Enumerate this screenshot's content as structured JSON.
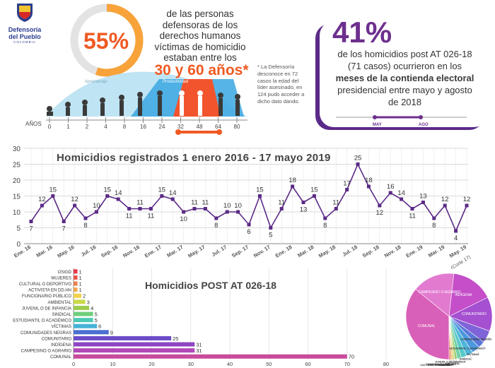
{
  "logo": {
    "title_line1": "Defensoría",
    "title_line2": "del Pueblo",
    "subtitle": "COLOMBIA"
  },
  "age_panel": {
    "percent": "55%",
    "percent_value": 55,
    "statement": "de las personas defensoras de los derechos humanos víctimas de homicidio estaban entre los",
    "range_text": "30 y 60 años*",
    "stage_labels": [
      "Aprendizaje",
      "Productividad"
    ],
    "axis_label": "AÑOS",
    "ticks": [
      "0",
      "1",
      "2",
      "4",
      "8",
      "16",
      "24",
      "32",
      "48",
      "64",
      "80"
    ],
    "slider_range": [
      "32",
      "64"
    ],
    "note": "* La Defensoría desconoce en 72 casos la edad del líder asesinado, en 124 pudo acceder a dicho dato dando."
  },
  "electoral_card": {
    "percent": "41%",
    "percent_value": 41,
    "text_line1": "de los homicidios post AT 026-18 (71 casos) ocurrieron en los",
    "bold1": "meses de la contienda electoral",
    "text_line2": "presidencial entre mayo y agosto de 2018",
    "slider_labels": [
      "MAY",
      "AGO"
    ]
  },
  "colors": {
    "accent_orange": "#f05a22",
    "purple": "#6d2f8e",
    "line_purple": "#5b2a86",
    "grid": "#cccccc",
    "bar_red": "#e63946"
  },
  "chart_data": [
    {
      "type": "line",
      "title": "Homicidios registrados 1 enero 2016 - 17 mayo 2019",
      "ylim": [
        0,
        30
      ],
      "yticks": [
        0,
        5,
        10,
        15,
        20,
        25,
        30
      ],
      "grid": true,
      "x_tick_labels": [
        "Ene. 16",
        "Mar. 16",
        "May. 16",
        "Jul. 16",
        "Sep. 16",
        "Nov. 16",
        "Ene. 17",
        "Mar. 17",
        "May. 17",
        "Jul. 17",
        "Sep. 17",
        "Nov. 17",
        "Ene. 18",
        "Mar. 18",
        "May. 18",
        "Jul. 18",
        "Sep. 18",
        "Nov. 18",
        "Ene. 19",
        "Mar. 19",
        "May. 19"
      ],
      "last_label_note": "(Corte 17)",
      "series": [
        {
          "values": [
            7,
            12,
            15,
            7,
            12,
            8,
            10,
            15,
            14,
            11,
            11,
            11,
            15,
            14,
            10,
            11,
            11,
            8,
            10,
            10,
            6,
            15,
            5,
            11,
            18,
            13,
            15,
            8,
            11,
            17,
            25,
            18,
            12,
            16,
            14,
            11,
            13,
            8,
            12,
            4,
            12
          ]
        }
      ]
    },
    {
      "type": "bar",
      "title": "Homicidios POST AT 026-18",
      "orientation": "horizontal",
      "xlim": [
        0,
        80
      ],
      "xticks": [
        0,
        10,
        20,
        30,
        40,
        50,
        60,
        70,
        80
      ],
      "categories": [
        "OSIGD",
        "MUJERES",
        "CULTURAL O DEPORTIVO",
        "ACTIVISTA EN DD.HH",
        "FUNCIONARIO PÚBLICO",
        "AMBIENTAL",
        "JUVENIL O DE INFANCIA",
        "SINDICAL",
        "ESTUDIANTIL O ACADÉMICO",
        "VÍCTIMAS",
        "COMUNIDADES NEGRAS",
        "COMUNITARIO",
        "INDÍGENA",
        "CAMPESINO O AGRARIO",
        "COMUNAL"
      ],
      "values": [
        1,
        1,
        1,
        1,
        2,
        3,
        4,
        5,
        5,
        6,
        9,
        25,
        31,
        31,
        70
      ],
      "colors": [
        "#e63946",
        "#e8564a",
        "#ec7c4a",
        "#f2a74b",
        "#f0d24b",
        "#c9d94a",
        "#9ccc4f",
        "#6fcf7c",
        "#4dc9b5",
        "#46b3d6",
        "#4b6fd1",
        "#6b4bc8",
        "#8e44c4",
        "#b247b8",
        "#c84a9c"
      ]
    },
    {
      "type": "pie",
      "labels": [
        "COMUNAL",
        "CAMPESINO O AGRARIO",
        "INDÍGENA",
        "COMUNITARIO",
        "COMUNIDADES NEGRAS",
        "ESTUDIANTIL O ACADÉMICO",
        "VÍCTIMAS",
        "SINDICAL",
        "JUVENIL O DE INFANCIA",
        "AMBIENTAL",
        "FUNCIONARIO PÚBLICO",
        "ACTIVISTA EN DD.HH",
        "CULTURAL O DEPORTIVO",
        "MUJERES",
        "OSIGD"
      ],
      "values": [
        70,
        31,
        31,
        25,
        9,
        5,
        6,
        5,
        4,
        3,
        2,
        1,
        1,
        1,
        1
      ],
      "colors": [
        "#d960b8",
        "#e27ad0",
        "#c44fc8",
        "#a54fd1",
        "#7f63d8",
        "#5a78d8",
        "#4d98dd",
        "#4fb5d9",
        "#57c9c8",
        "#6fd0a7",
        "#9fd07a",
        "#c6d25e",
        "#e6c85a",
        "#eda05a",
        "#ea6b5a"
      ],
      "internal_labels": [
        "COMUNITARIO",
        "INDÍGENA",
        "CAMPESINO O AGRARIO",
        "COMUNAL"
      ]
    }
  ]
}
